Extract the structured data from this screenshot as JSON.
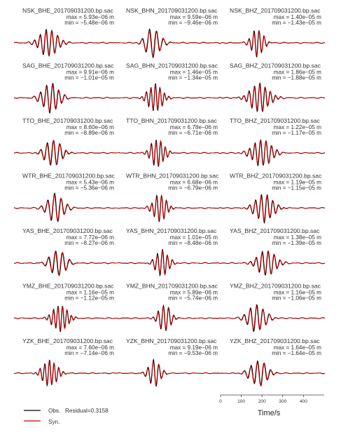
{
  "chart_data": {
    "type": "line",
    "series": [
      {
        "name": "Obs.",
        "color": "#000000"
      },
      {
        "name": "Syn.",
        "color": "#d40000"
      }
    ],
    "legend": {
      "obs_label": "Obs.",
      "residual_label": "Residual=0.3158",
      "syn_label": "Syn."
    },
    "xlabel": "Time/s",
    "xlim": [
      0,
      500
    ],
    "xticks": [
      "0",
      "100",
      "200",
      "300",
      "400"
    ],
    "panels": [
      {
        "title": "NSK_BHE_201709031200.bp.sac",
        "max": "max = 5.93e−06 m",
        "min": "min = −5.48e−06 m",
        "amp_max": 5.93e-06,
        "amp_min": -5.48e-06
      },
      {
        "title": "NSK_BHN_201709031200.bp.sac",
        "max": "max = 9.59e−06 m",
        "min": "min = −9.46e−06 m",
        "amp_max": 9.59e-06,
        "amp_min": -9.46e-06
      },
      {
        "title": "NSK_BHZ_201709031200.bp.sac",
        "max": "max = 1.40e−05 m",
        "min": "min = −1.43e−05 m",
        "amp_max": 1.4e-05,
        "amp_min": -1.43e-05
      },
      {
        "title": "SAG_BHE_201709031200.bp.sac",
        "max": "max = 9.91e−06 m",
        "min": "min = −1.01e−05 m",
        "amp_max": 9.91e-06,
        "amp_min": -1.01e-05
      },
      {
        "title": "SAG_BHN_201709031200.bp.sac",
        "max": "max = 1.46e−05 m",
        "min": "min = −1.34e−05 m",
        "amp_max": 1.46e-05,
        "amp_min": -1.34e-05
      },
      {
        "title": "SAG_BHZ_201709031200.bp.sac",
        "max": "max = 1.86e−05 m",
        "min": "min = −1.88e−05 m",
        "amp_max": 1.86e-05,
        "amp_min": -1.88e-05
      },
      {
        "title": "TTO_BHE_201709031200.bp.sac",
        "max": "max = 8.60e−06 m",
        "min": "min = −8.89e−06 m",
        "amp_max": 8.6e-06,
        "amp_min": -8.89e-06
      },
      {
        "title": "TTO_BHN_201709031200.bp.sac",
        "max": "max = 6.78e−06 m",
        "min": "min = −6.71e−06 m",
        "amp_max": 6.78e-06,
        "amp_min": -6.71e-06
      },
      {
        "title": "TTO_BHZ_201709031200.bp.sac",
        "max": "max = 1.22e−05 m",
        "min": "min = −1.17e−05 m",
        "amp_max": 1.22e-05,
        "amp_min": -1.17e-05
      },
      {
        "title": "WTR_BHE_201709031200.bp.sac",
        "max": "max = 5.43e−06 m",
        "min": "min = −5.36e−06 m",
        "amp_max": 5.43e-06,
        "amp_min": -5.36e-06
      },
      {
        "title": "WTR_BHN_201709031200.bp.sac",
        "max": "max = 6.68e−06 m",
        "min": "min = −6.79e−06 m",
        "amp_max": 6.68e-06,
        "amp_min": -6.79e-06
      },
      {
        "title": "WTR_BHZ_201709031200.bp.sac",
        "max": "max = 1.19e−05 m",
        "min": "min = −1.15e−05 m",
        "amp_max": 1.19e-05,
        "amp_min": -1.15e-05
      },
      {
        "title": "YAS_BHE_201709031200.bp.sac",
        "max": "max = 7.72e−06 m",
        "min": "min = −8.27e−06 m",
        "amp_max": 7.72e-06,
        "amp_min": -8.27e-06
      },
      {
        "title": "YAS_BHN_201709031200.bp.sac",
        "max": "max = 1.01e−05 m",
        "min": "min = −8.48e−06 m",
        "amp_max": 1.01e-05,
        "amp_min": -8.48e-06
      },
      {
        "title": "YAS_BHZ_201709031200.bp.sac",
        "max": "max = 1.38e−05 m",
        "min": "min = −1.39e−05 m",
        "amp_max": 1.38e-05,
        "amp_min": -1.39e-05
      },
      {
        "title": "YMZ_BHE_201709031200.bp.sac",
        "max": "max = 1.16e−05 m",
        "min": "min = −1.12e−05 m",
        "amp_max": 1.16e-05,
        "amp_min": -1.12e-05
      },
      {
        "title": "YMZ_BHN_201709031200.bp.sac",
        "max": "max = 5.89e−06 m",
        "min": "min = −5.74e−06 m",
        "amp_max": 5.89e-06,
        "amp_min": -5.74e-06
      },
      {
        "title": "YMZ_BHZ_201709031200.bp.sac",
        "max": "max = 1.16e−05 m",
        "min": "min = −1.06e−05 m",
        "amp_max": 1.16e-05,
        "amp_min": -1.06e-05
      },
      {
        "title": "YZK_BHE_201709031200.bp.sac",
        "max": "max = 7.60e−06 m",
        "min": "min = −7.14e−06 m",
        "amp_max": 7.6e-06,
        "amp_min": -7.14e-06
      },
      {
        "title": "YZK_BHN_201709031200.bp.sac",
        "max": "max = 9.19e−06 m",
        "min": "min = −9.53e−06 m",
        "amp_max": 9.19e-06,
        "amp_min": -9.53e-06
      },
      {
        "title": "YZK_BHZ_201709031200.bp.sac",
        "max": "max = 1.64e−05 m",
        "min": "min = −1.64e−05 m",
        "amp_max": 1.64e-05,
        "amp_min": -1.64e-05
      }
    ]
  }
}
